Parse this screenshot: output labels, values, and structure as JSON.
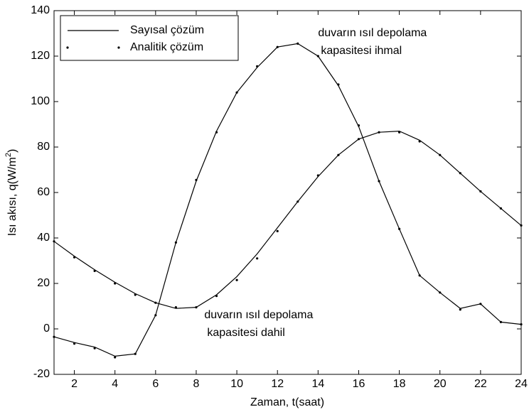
{
  "chart_data": {
    "type": "line",
    "xlabel": "Zaman, t(saat)",
    "ylabel": {
      "text": "Isı akısı, q(W/m",
      "sup": "2",
      "end": ")"
    },
    "x": [
      1,
      2,
      3,
      4,
      5,
      6,
      7,
      8,
      9,
      10,
      11,
      12,
      13,
      14,
      15,
      16,
      17,
      18,
      19,
      20,
      21,
      22,
      23,
      24
    ],
    "series": [
      {
        "name": "Sayısal çözüm",
        "style": "line",
        "color": "#000000",
        "curves": [
          [
            -3.5,
            -6,
            -8,
            -12,
            -11,
            6,
            38,
            65,
            87,
            104,
            115,
            124,
            125.5,
            120,
            107,
            89,
            65,
            44,
            23.5,
            16,
            9,
            11,
            3,
            2
          ],
          [
            38.5,
            32,
            26,
            20.5,
            15.5,
            11.5,
            9,
            9.5,
            15,
            23,
            33,
            44.5,
            56,
            67,
            76.5,
            83.5,
            86.5,
            87,
            83,
            76.5,
            68.5,
            60.5,
            53,
            45.5
          ]
        ]
      },
      {
        "name": "Analitik çözüm",
        "style": "dots",
        "color": "#000000",
        "curves": [
          [
            -3.5,
            -6.5,
            -8.5,
            -12.5,
            -11,
            6,
            38,
            65.5,
            86.5,
            104,
            115.5,
            124,
            125.5,
            120,
            107.5,
            89.5,
            65,
            44,
            23.5,
            16,
            8.5,
            11,
            3,
            2
          ],
          [
            38.5,
            31.5,
            25.5,
            20,
            15,
            11.5,
            9.5,
            9.5,
            14.5,
            21.5,
            31,
            43,
            56,
            67.5,
            76.5,
            83.5,
            86.5,
            86.5,
            82.5,
            76.5,
            68.5,
            60.5,
            53,
            45.5
          ]
        ]
      }
    ],
    "annotations": [
      {
        "lines": [
          "duvarın ısıl depolama",
          "kapasitesi ihmal"
        ],
        "x": 14,
        "y": 130
      },
      {
        "lines": [
          "duvarın ısıl depolama",
          "kapasitesi dahil"
        ],
        "x": 8.4,
        "y": 6
      }
    ],
    "xlim": [
      1,
      24
    ],
    "xticks": [
      2,
      4,
      6,
      8,
      10,
      12,
      14,
      16,
      18,
      20,
      22,
      24
    ],
    "ylim": [
      -20,
      140
    ],
    "yticks": [
      -20,
      0,
      20,
      40,
      60,
      80,
      100,
      120,
      140
    ],
    "legend": "upper left"
  }
}
